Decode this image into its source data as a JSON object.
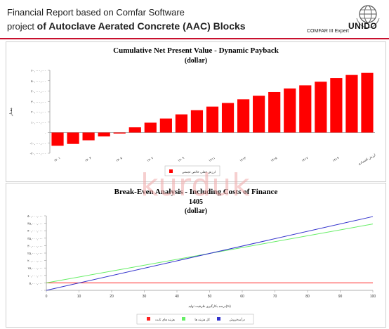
{
  "header": {
    "title_line1": "Financial Report  based on Comfar Software",
    "title_line2_prefix": "project ",
    "title_line2_strong": "of Autoclave Aerated Concrete (AAC) Blocks",
    "logo_text": "UNIDO",
    "comfar_label": "COMFAR III Expert"
  },
  "watermark": "kurduk",
  "colors": {
    "bar_red": "#ff0000",
    "green": "#66ee66",
    "blue": "#3333cc",
    "red_line": "#ff2222",
    "header_rule": "#c8102e"
  },
  "chart_data": [
    {
      "type": "bar",
      "title": "Cumulative Net Present Value - Dynamic Payback",
      "subtitle": "(dollar)",
      "ylabel": "مقدار",
      "ytick_labels": [
        "۶۰,۰۰۰,۰۰۰",
        "۵۰,۰۰۰,۰۰۰",
        "۴۰,۰۰۰,۰۰۰",
        "۳۰,۰۰۰,۰۰۰",
        "۲۰,۰۰۰,۰۰۰",
        "۱۰,۰۰۰,۰۰۰",
        "۰",
        "-۱۰,۰۰۰,۰۰۰",
        "-۲۰,۰۰۰,۰۰۰"
      ],
      "yticks": [
        60000000,
        50000000,
        40000000,
        30000000,
        20000000,
        10000000,
        0,
        -10000000,
        -20000000
      ],
      "ylim": [
        -20000000,
        60000000
      ],
      "categories": [
        "۱۴۰۱",
        "",
        "۱۴۰۳",
        "",
        "۱۴۰۵",
        "",
        "۱۴۰۷",
        "",
        "۱۴۰۹",
        "",
        "۱۴۱۱",
        "",
        "۱۴۱۳",
        "",
        "۱۴۱۵",
        "",
        "۱۴۱۷",
        "",
        "۱۴۱۹",
        "",
        "ارزش اقتصادی"
      ],
      "values": [
        -12800000,
        -11000000,
        -7500000,
        -3800000,
        -1000000,
        5000000,
        9500000,
        13500000,
        17500000,
        21500000,
        25000000,
        28500000,
        32000000,
        35500000,
        39000000,
        42500000,
        45500000,
        49000000,
        52500000,
        55500000,
        57500000
      ],
      "legend": [
        "ارزش فعلی خالص تجمعی"
      ],
      "legend_position": "bottom-center",
      "grid": false
    },
    {
      "type": "line",
      "title": "Break-Even Analysis - Including Costs of Finance",
      "subtitle_year": "1405",
      "subtitle_unit": "(dollar)",
      "xlabel": "درصد بکارگیری ظرفیت تولید(%)",
      "x": [
        0,
        100
      ],
      "xtick_labels": [
        "0",
        "10",
        "20",
        "30",
        "40",
        "50",
        "60",
        "70",
        "80",
        "90",
        "100"
      ],
      "ytick_labels": [
        "۵۰,۰۰۰,۰۰۰",
        "۴۵,۰۰۰,۰۰۰",
        "۴۰,۰۰۰,۰۰۰",
        "۳۵,۰۰۰,۰۰۰",
        "۳۰,۰۰۰,۰۰۰",
        "۲۵,۰۰۰,۰۰۰",
        "۲۰,۰۰۰,۰۰۰",
        "۱۵,۰۰۰,۰۰۰",
        "۱۰,۰۰۰,۰۰۰",
        "۵,۰۰۰,۰۰۰",
        "۰"
      ],
      "yticks": [
        50000000,
        45000000,
        40000000,
        35000000,
        30000000,
        25000000,
        20000000,
        15000000,
        10000000,
        5000000,
        0
      ],
      "ylim": [
        0,
        50000000
      ],
      "series": [
        {
          "name": "هزینه های ثابت",
          "values": [
            5000000,
            5000000
          ]
        },
        {
          "name": "کل هزینه ها",
          "values": [
            5000000,
            44500000
          ]
        },
        {
          "name": "درآمدفروش",
          "values": [
            0,
            49500000
          ]
        }
      ],
      "legend_position": "bottom-center",
      "grid": false
    }
  ]
}
